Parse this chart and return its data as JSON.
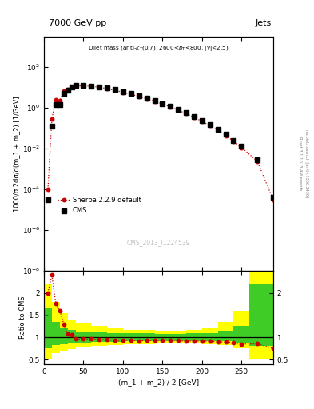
{
  "title_left": "7000 GeV pp",
  "title_right": "Jets",
  "watermark": "CMS_2013_I1224539",
  "ylabel_main": "1000/σ 2dσ/d(m_1 + m_2) [1/GeV]",
  "ylabel_ratio": "Ratio to CMS",
  "xlabel": "(m_1 + m_2) / 2 [GeV]",
  "right_label1": "Rivet 3.1.10, 3.4M events",
  "right_label2": "mcplots.cern.ch [arXiv:1306.3436]",
  "xlim": [
    0,
    290
  ],
  "ylim_main": [
    1e-08,
    3000.0
  ],
  "ylim_ratio": [
    0.4,
    2.5
  ],
  "cms_x": [
    5,
    10,
    15,
    20,
    25,
    30,
    35,
    40,
    50,
    60,
    70,
    80,
    90,
    100,
    110,
    120,
    130,
    140,
    150,
    160,
    170,
    180,
    190,
    200,
    210,
    220,
    230,
    240,
    250,
    270,
    290
  ],
  "cms_y": [
    3e-05,
    0.12,
    1.4,
    1.4,
    5.0,
    7.0,
    10.0,
    12.5,
    12.0,
    11.5,
    10.5,
    9.0,
    7.5,
    6.0,
    4.8,
    3.8,
    2.9,
    2.2,
    1.6,
    1.15,
    0.8,
    0.55,
    0.36,
    0.23,
    0.14,
    0.085,
    0.048,
    0.025,
    0.013,
    0.0027,
    4e-05
  ],
  "sherpa_x": [
    5,
    10,
    15,
    20,
    25,
    30,
    35,
    40,
    50,
    60,
    70,
    80,
    90,
    100,
    110,
    120,
    130,
    140,
    150,
    160,
    170,
    180,
    190,
    200,
    210,
    220,
    230,
    240,
    250,
    270,
    290
  ],
  "sherpa_y": [
    0.0001,
    0.28,
    2.5,
    2.2,
    6.5,
    7.5,
    10.5,
    12.0,
    11.5,
    11.0,
    10.0,
    8.5,
    7.0,
    5.6,
    4.5,
    3.5,
    2.7,
    2.05,
    1.5,
    1.08,
    0.74,
    0.5,
    0.33,
    0.21,
    0.128,
    0.076,
    0.043,
    0.022,
    0.011,
    0.0023,
    3e-05
  ],
  "ratio_x": [
    5,
    10,
    15,
    20,
    25,
    30,
    35,
    40,
    50,
    60,
    70,
    80,
    90,
    100,
    110,
    120,
    130,
    140,
    150,
    160,
    170,
    180,
    190,
    200,
    210,
    220,
    230,
    240,
    250,
    270,
    290
  ],
  "ratio_y": [
    2.0,
    2.4,
    1.75,
    1.6,
    1.3,
    1.08,
    1.05,
    0.96,
    0.96,
    0.96,
    0.95,
    0.95,
    0.93,
    0.93,
    0.94,
    0.92,
    0.93,
    0.93,
    0.94,
    0.94,
    0.925,
    0.91,
    0.92,
    0.91,
    0.914,
    0.894,
    0.896,
    0.88,
    0.846,
    0.852,
    0.75
  ],
  "green_bins_x": [
    0,
    5,
    10,
    20,
    30,
    40,
    60,
    80,
    100,
    120,
    140,
    160,
    180,
    200,
    220,
    240,
    260,
    290
  ],
  "green_lo": [
    0.75,
    0.75,
    0.82,
    0.85,
    0.87,
    0.88,
    0.89,
    0.9,
    0.91,
    0.91,
    0.92,
    0.92,
    0.92,
    0.92,
    0.91,
    0.88,
    0.8,
    0.8
  ],
  "green_hi": [
    1.65,
    1.65,
    1.35,
    1.22,
    1.16,
    1.13,
    1.11,
    1.1,
    1.09,
    1.09,
    1.08,
    1.08,
    1.09,
    1.1,
    1.15,
    1.25,
    2.2,
    2.2
  ],
  "yellow_bins_x": [
    0,
    5,
    10,
    20,
    30,
    40,
    60,
    80,
    100,
    120,
    140,
    160,
    180,
    200,
    220,
    240,
    260,
    290
  ],
  "yellow_lo": [
    0.5,
    0.5,
    0.65,
    0.7,
    0.74,
    0.77,
    0.8,
    0.82,
    0.84,
    0.85,
    0.86,
    0.86,
    0.86,
    0.85,
    0.82,
    0.75,
    0.5,
    0.5
  ],
  "yellow_hi": [
    2.2,
    2.2,
    1.8,
    1.55,
    1.4,
    1.32,
    1.26,
    1.21,
    1.17,
    1.16,
    1.14,
    1.14,
    1.16,
    1.2,
    1.35,
    1.6,
    2.5,
    2.5
  ],
  "color_cms": "#000000",
  "color_sherpa": "#cc0000",
  "color_green": "#00bb33",
  "color_yellow": "#ffff00",
  "legend_cms": "CMS",
  "legend_sherpa": "Sherpa 2.2.9 default"
}
